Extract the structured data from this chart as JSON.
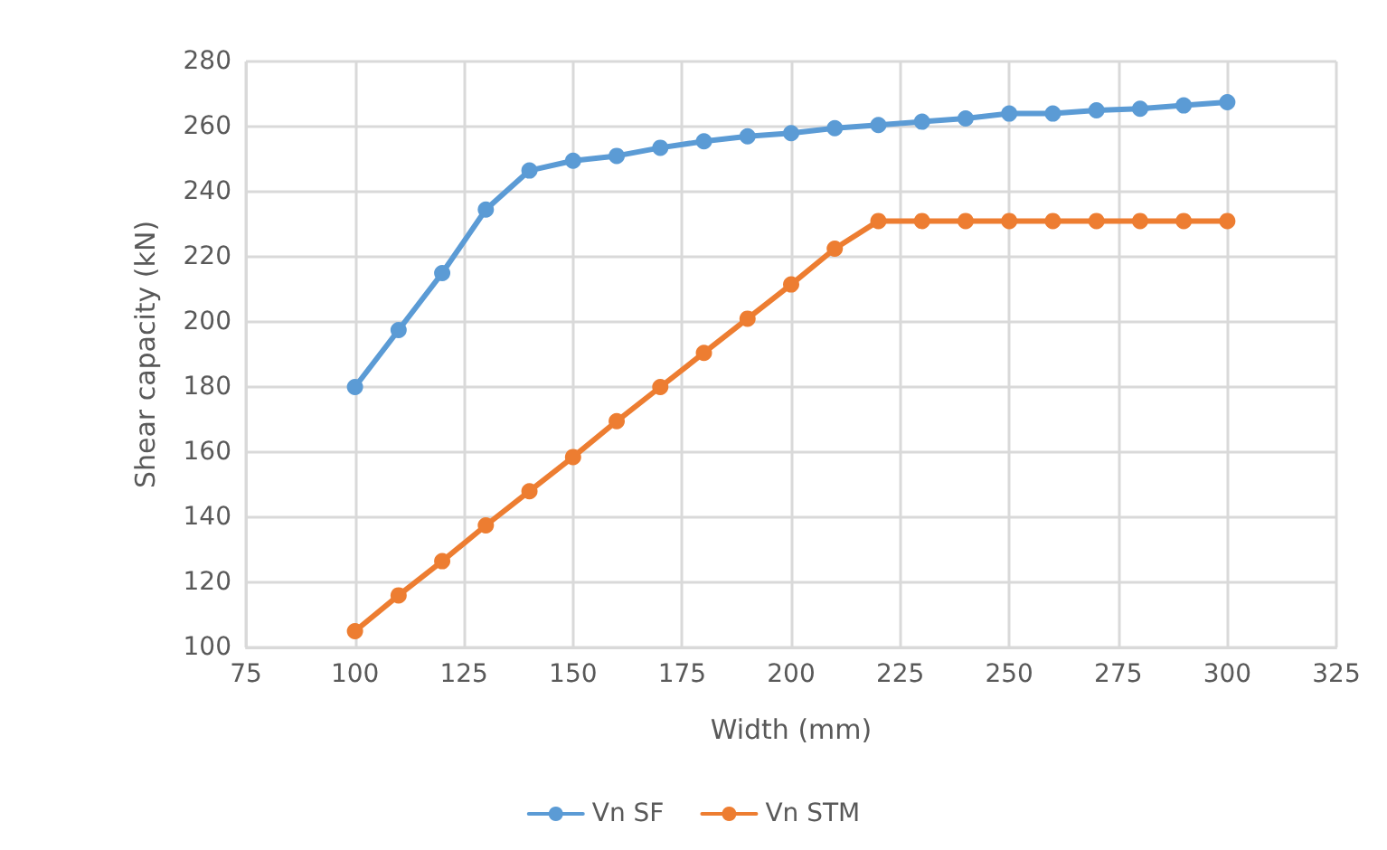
{
  "chart_data": {
    "type": "line",
    "xlabel": "Width (mm)",
    "ylabel": "Shear capacity (kN)",
    "x": [
      100,
      110,
      120,
      130,
      140,
      150,
      160,
      170,
      180,
      190,
      200,
      210,
      220,
      230,
      240,
      250,
      260,
      270,
      280,
      290,
      300
    ],
    "series": [
      {
        "name": "Vn SF",
        "color": "#5b9bd5",
        "values": [
          180,
          197.5,
          215,
          234.5,
          246.5,
          249.5,
          251,
          253.5,
          255.5,
          257,
          258,
          259.5,
          260.5,
          261.5,
          262.5,
          264,
          264,
          265,
          265.5,
          266.5,
          267.5
        ]
      },
      {
        "name": "Vn STM",
        "color": "#ed7d31",
        "values": [
          105,
          116,
          126.5,
          137.5,
          148,
          158.5,
          169.5,
          180,
          190.5,
          201,
          211.5,
          222.5,
          231,
          231,
          231,
          231,
          231,
          231,
          231,
          231,
          231
        ]
      }
    ],
    "xlim": [
      75,
      325
    ],
    "xticks": [
      75,
      100,
      125,
      150,
      175,
      200,
      225,
      250,
      275,
      300,
      325
    ],
    "ylim": [
      100,
      280
    ],
    "yticks": [
      100,
      120,
      140,
      160,
      180,
      200,
      220,
      240,
      260,
      280
    ],
    "grid": true,
    "legend": "bottom",
    "marker": "circle",
    "line_style": "solid"
  }
}
